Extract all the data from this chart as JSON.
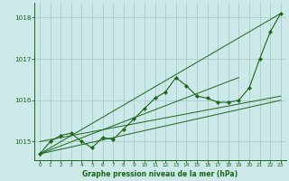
{
  "title": "Graphe pression niveau de la mer (hPa)",
  "background_color": "#cce8e8",
  "plot_bg_color": "#cce8e8",
  "grid_color": "#aacccc",
  "line_color": "#1a6618",
  "xlim": [
    -0.5,
    23.5
  ],
  "ylim": [
    1014.55,
    1018.35
  ],
  "yticks": [
    1015,
    1016,
    1017,
    1018
  ],
  "xticks": [
    0,
    1,
    2,
    3,
    4,
    5,
    6,
    7,
    8,
    9,
    10,
    11,
    12,
    13,
    14,
    15,
    16,
    17,
    18,
    19,
    20,
    21,
    22,
    23
  ],
  "main_y": [
    1014.7,
    1015.0,
    1015.15,
    1015.2,
    1015.0,
    1014.85,
    1015.1,
    1015.05,
    1015.3,
    1015.55,
    1015.8,
    1016.05,
    1016.2,
    1016.55,
    1016.35,
    1016.1,
    1016.05,
    1015.95,
    1015.95,
    1016.0,
    1016.3,
    1017.0,
    1017.65,
    1018.1
  ],
  "trend_lines": [
    {
      "x": [
        0,
        23
      ],
      "y": [
        1014.7,
        1018.1
      ]
    },
    {
      "x": [
        0,
        23
      ],
      "y": [
        1014.7,
        1016.0
      ]
    },
    {
      "x": [
        0,
        19
      ],
      "y": [
        1014.7,
        1016.55
      ]
    },
    {
      "x": [
        0,
        23
      ],
      "y": [
        1015.0,
        1016.1
      ]
    }
  ]
}
